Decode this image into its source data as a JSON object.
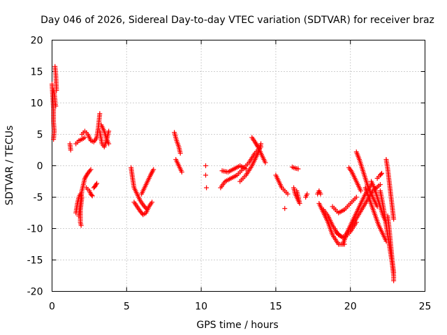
{
  "chart_data": {
    "type": "scatter",
    "title": "Day 046 of 2026, Sidereal Day-to-day VTEC variation (SDTVAR) for receiver braz",
    "xlabel": "GPS time / hours",
    "ylabel": "SDTVAR / TECUs",
    "xlim": [
      0,
      25
    ],
    "ylim": [
      -20,
      20
    ],
    "xticks": [
      0,
      5,
      10,
      15,
      20,
      25
    ],
    "yticks": [
      -20,
      -15,
      -10,
      -5,
      0,
      5,
      10,
      15,
      20
    ],
    "xtick_labels": [
      "0",
      "5",
      "10",
      "15",
      "20",
      "25"
    ],
    "ytick_labels": [
      "-20",
      "-15",
      "-10",
      "-5",
      "0",
      "5",
      "10",
      "15",
      "20"
    ],
    "grid": true,
    "marker": "+",
    "marker_color": "#ff0000",
    "segments": [
      [
        [
          0.0,
          13
        ],
        [
          0.05,
          11
        ],
        [
          0.1,
          9
        ],
        [
          0.1,
          7
        ],
        [
          0.15,
          5.5
        ],
        [
          0.1,
          4.2
        ]
      ],
      [
        [
          0.1,
          12
        ],
        [
          0.15,
          11.5
        ],
        [
          0.2,
          10.5
        ],
        [
          0.2,
          10
        ],
        [
          0.25,
          9.5
        ]
      ],
      [
        [
          0.2,
          15.8
        ],
        [
          0.25,
          14.5
        ],
        [
          0.3,
          12
        ]
      ],
      [
        [
          1.2,
          3.5
        ],
        [
          1.25,
          2.5
        ]
      ],
      [
        [
          1.6,
          3.5
        ],
        [
          1.8,
          4.0
        ],
        [
          2.0,
          4.2
        ],
        [
          2.2,
          4.5
        ]
      ],
      [
        [
          1.6,
          -7.5
        ],
        [
          1.7,
          -6
        ],
        [
          1.8,
          -5
        ],
        [
          1.9,
          -4.5
        ],
        [
          2.0,
          -5
        ],
        [
          1.9,
          -7
        ],
        [
          1.9,
          -9
        ],
        [
          1.95,
          -9.5
        ]
      ],
      [
        [
          1.8,
          -8
        ],
        [
          1.9,
          -6
        ],
        [
          2.0,
          -4
        ],
        [
          2.1,
          -3
        ],
        [
          2.2,
          -2
        ],
        [
          2.4,
          -1.2
        ],
        [
          2.6,
          -0.6
        ]
      ],
      [
        [
          2.0,
          5.0
        ],
        [
          2.2,
          5.5
        ],
        [
          2.4,
          5.0
        ],
        [
          2.6,
          4.0
        ],
        [
          2.8,
          3.8
        ],
        [
          3.0,
          4.5
        ],
        [
          3.1,
          6.0
        ],
        [
          3.2,
          8.3
        ]
      ],
      [
        [
          2.3,
          -3.5
        ],
        [
          2.5,
          -4
        ],
        [
          2.6,
          -4.5
        ],
        [
          2.7,
          -4.8
        ]
      ],
      [
        [
          2.8,
          -3.5
        ],
        [
          2.9,
          -3.2
        ],
        [
          3.0,
          -2.8
        ]
      ],
      [
        [
          3.2,
          5.5
        ],
        [
          3.35,
          3.5
        ],
        [
          3.5,
          3.0
        ],
        [
          3.65,
          4.0
        ],
        [
          3.8,
          5.5
        ]
      ],
      [
        [
          3.3,
          6.5
        ],
        [
          3.5,
          5.5
        ],
        [
          3.7,
          4.0
        ],
        [
          3.8,
          3.5
        ]
      ],
      [
        [
          5.3,
          -0.3
        ],
        [
          5.4,
          -2.0
        ],
        [
          5.5,
          -3.5
        ],
        [
          5.7,
          -4.5
        ],
        [
          5.9,
          -5.5
        ],
        [
          6.1,
          -6.2
        ],
        [
          6.3,
          -6.8
        ]
      ],
      [
        [
          5.5,
          -5.8
        ],
        [
          5.7,
          -6.5
        ],
        [
          5.9,
          -7.2
        ],
        [
          6.1,
          -7.8
        ],
        [
          6.3,
          -7.5
        ],
        [
          6.5,
          -6.5
        ],
        [
          6.7,
          -5.8
        ]
      ],
      [
        [
          6.0,
          -4.5
        ],
        [
          6.2,
          -3.5
        ],
        [
          6.4,
          -2.5
        ],
        [
          6.6,
          -1.5
        ],
        [
          6.8,
          -0.6
        ]
      ],
      [
        [
          8.2,
          5.3
        ],
        [
          8.35,
          4.0
        ],
        [
          8.5,
          3.0
        ],
        [
          8.6,
          2.0
        ]
      ],
      [
        [
          8.3,
          1.0
        ],
        [
          8.4,
          0.5
        ],
        [
          8.5,
          0.0
        ],
        [
          8.6,
          -0.5
        ],
        [
          8.7,
          -1.0
        ]
      ],
      [
        [
          10.3,
          0.0
        ]
      ],
      [
        [
          10.3,
          -1.5
        ]
      ],
      [
        [
          10.35,
          -3.5
        ]
      ],
      [
        [
          11.3,
          -3.5
        ],
        [
          11.6,
          -2.5
        ],
        [
          12.0,
          -2.0
        ],
        [
          12.4,
          -1.5
        ],
        [
          12.8,
          -0.5
        ],
        [
          13.2,
          0.5
        ],
        [
          13.6,
          2.0
        ],
        [
          14.0,
          3.0
        ]
      ],
      [
        [
          11.4,
          -0.8
        ],
        [
          11.8,
          -1.0
        ],
        [
          12.2,
          -0.5
        ],
        [
          12.6,
          0.0
        ],
        [
          13.0,
          -0.5
        ]
      ],
      [
        [
          12.6,
          -2.5
        ],
        [
          13.0,
          -1.5
        ],
        [
          13.4,
          0.0
        ],
        [
          13.7,
          1.5
        ],
        [
          13.9,
          2.5
        ],
        [
          14.0,
          3.5
        ]
      ],
      [
        [
          13.4,
          4.5
        ],
        [
          13.6,
          3.8
        ],
        [
          13.8,
          3.0
        ],
        [
          14.0,
          2.0
        ],
        [
          14.2,
          1.0
        ],
        [
          14.3,
          0.5
        ]
      ],
      [
        [
          15.0,
          -1.5
        ],
        [
          15.2,
          -2.5
        ],
        [
          15.4,
          -3.5
        ],
        [
          15.6,
          -4.0
        ],
        [
          15.8,
          -4.5
        ]
      ],
      [
        [
          15.6,
          -6.8
        ]
      ],
      [
        [
          16.1,
          -0.2
        ],
        [
          16.3,
          -0.4
        ],
        [
          16.5,
          -0.5
        ]
      ],
      [
        [
          16.2,
          -3.5
        ],
        [
          16.3,
          -4.5
        ],
        [
          16.5,
          -5.5
        ],
        [
          16.6,
          -6.0
        ],
        [
          16.4,
          -4.0
        ]
      ],
      [
        [
          17.8,
          -4.5
        ],
        [
          17.9,
          -4.0
        ],
        [
          18.0,
          -4.5
        ]
      ],
      [
        [
          17.0,
          -5.0
        ],
        [
          17.1,
          -4.5
        ]
      ],
      [
        [
          17.9,
          -6.0
        ],
        [
          18.2,
          -7.5
        ],
        [
          18.5,
          -9.0
        ],
        [
          18.8,
          -11.0
        ],
        [
          19.2,
          -12.5
        ],
        [
          19.6,
          -12.5
        ]
      ],
      [
        [
          18.2,
          -7.0
        ],
        [
          18.5,
          -8.0
        ],
        [
          18.8,
          -9.5
        ],
        [
          19.2,
          -11.0
        ],
        [
          19.6,
          -11.5
        ],
        [
          20.0,
          -10.5
        ],
        [
          20.4,
          -9.0
        ]
      ],
      [
        [
          19.0,
          -10.5
        ],
        [
          19.5,
          -11.5
        ],
        [
          20.0,
          -10.0
        ],
        [
          20.5,
          -8.0
        ],
        [
          21.0,
          -6.0
        ],
        [
          21.5,
          -4.0
        ],
        [
          22.0,
          -3.0
        ]
      ],
      [
        [
          18.8,
          -6.5
        ],
        [
          19.2,
          -7.5
        ],
        [
          19.6,
          -7.0
        ],
        [
          20.0,
          -6.0
        ],
        [
          20.4,
          -5.0
        ]
      ],
      [
        [
          19.5,
          -12.5
        ],
        [
          19.8,
          -10.5
        ],
        [
          20.2,
          -8.5
        ],
        [
          20.6,
          -6.5
        ],
        [
          21.0,
          -4.5
        ],
        [
          21.4,
          -3.0
        ]
      ],
      [
        [
          19.9,
          -0.3
        ],
        [
          20.1,
          -1.0
        ],
        [
          20.3,
          -2.0
        ],
        [
          20.5,
          -3.0
        ],
        [
          20.7,
          -4.0
        ]
      ],
      [
        [
          20.4,
          2.2
        ],
        [
          20.6,
          1.0
        ],
        [
          20.8,
          -0.5
        ],
        [
          21.0,
          -2.0
        ],
        [
          21.2,
          -3.5
        ],
        [
          21.4,
          -4.5
        ],
        [
          21.6,
          -5.5
        ],
        [
          21.8,
          -6.5
        ]
      ],
      [
        [
          21.0,
          -3.5
        ],
        [
          21.3,
          -5.5
        ],
        [
          21.6,
          -7.5
        ],
        [
          21.9,
          -9.5
        ],
        [
          22.2,
          -11.0
        ],
        [
          22.4,
          -12.0
        ]
      ],
      [
        [
          21.4,
          -2.5
        ],
        [
          21.6,
          -3.5
        ],
        [
          21.8,
          -5.0
        ],
        [
          22.0,
          -6.5
        ],
        [
          22.2,
          -8.0
        ],
        [
          22.4,
          -9.0
        ]
      ],
      [
        [
          22.0,
          -4.0
        ],
        [
          22.2,
          -6.5
        ],
        [
          22.4,
          -9.5
        ],
        [
          22.6,
          -12.5
        ],
        [
          22.8,
          -15.5
        ],
        [
          22.9,
          -17.5
        ],
        [
          22.9,
          -18.3
        ]
      ],
      [
        [
          22.5,
          -8.0
        ],
        [
          22.6,
          -10.0
        ],
        [
          22.7,
          -12.5
        ],
        [
          22.8,
          -15.0
        ],
        [
          22.9,
          -17.0
        ]
      ],
      [
        [
          22.4,
          1.0
        ],
        [
          22.5,
          -0.5
        ],
        [
          22.6,
          -2.5
        ],
        [
          22.7,
          -4.5
        ],
        [
          22.8,
          -6.5
        ],
        [
          22.9,
          -8.5
        ]
      ],
      [
        [
          21.8,
          -2.0
        ],
        [
          22.0,
          -1.5
        ],
        [
          22.1,
          -1.2
        ]
      ]
    ]
  }
}
